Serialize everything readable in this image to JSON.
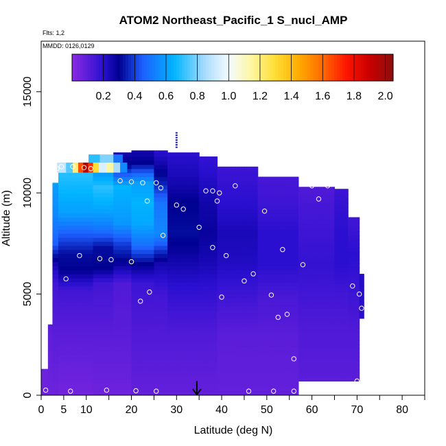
{
  "chart_data": {
    "type": "heatmap",
    "title": "ATOM2 Northeast_Pacific_1 S_nucl_AMP",
    "flights_note": "Flts: 1,2",
    "dates_note": "MMDD: 0126,0129",
    "xlabel": "Latitude (deg N)",
    "ylabel": "Altitude (m)",
    "xlim": [
      0,
      85
    ],
    "ylim": [
      0,
      17500
    ],
    "x_ticks": [
      0,
      5,
      10,
      20,
      30,
      40,
      50,
      60,
      70,
      80
    ],
    "x_tick_labels": [
      "0",
      "5",
      "10",
      "20",
      "30",
      "40",
      "50",
      "60",
      "70",
      "80"
    ],
    "y_ticks": [
      0,
      5000,
      10000,
      15000
    ],
    "y_tick_labels": [
      "0",
      "5000",
      "10000",
      "15000"
    ],
    "colorbar": {
      "range": [
        0.0,
        2.05
      ],
      "ticks": [
        0.2,
        0.4,
        0.6,
        0.8,
        1.0,
        1.2,
        1.4,
        1.6,
        1.8,
        2.0
      ],
      "tick_labels": [
        "0.2",
        "0.4",
        "0.6",
        "0.8",
        "1.0",
        "1.2",
        "1.4",
        "1.6",
        "1.8",
        "2.0"
      ],
      "stops": [
        [
          0.0,
          "#8a2be2"
        ],
        [
          0.2,
          "#2a0fd0"
        ],
        [
          0.3,
          "#000090"
        ],
        [
          0.45,
          "#1e5fff"
        ],
        [
          0.65,
          "#00b4ff"
        ],
        [
          0.85,
          "#aadcff"
        ],
        [
          1.0,
          "#f4fbff"
        ],
        [
          1.15,
          "#fff6a0"
        ],
        [
          1.3,
          "#ffdd33"
        ],
        [
          1.45,
          "#ffaa00"
        ],
        [
          1.6,
          "#ff6a00"
        ],
        [
          1.75,
          "#ff1500"
        ],
        [
          1.9,
          "#c80000"
        ],
        [
          2.05,
          "#8a0f0f"
        ]
      ]
    },
    "column_profiles": [
      {
        "lat_from": 0.0,
        "lat_to": 1.5,
        "alt_from": 0,
        "alt_to": 1300,
        "values": [
          [
            0,
            0.06
          ]
        ]
      },
      {
        "lat_from": 1.5,
        "lat_to": 2.5,
        "alt_from": 0,
        "alt_to": 3500,
        "values": [
          [
            0,
            0.06
          ],
          [
            2000,
            0.08
          ],
          [
            3500,
            0.1
          ]
        ]
      },
      {
        "lat_from": 2.5,
        "lat_to": 3.8,
        "alt_from": 0,
        "alt_to": 10500,
        "values": [
          [
            0,
            0.06
          ],
          [
            3000,
            0.1
          ],
          [
            5500,
            0.15
          ],
          [
            6500,
            0.25
          ],
          [
            7500,
            0.45
          ],
          [
            9000,
            0.55
          ],
          [
            10500,
            0.6
          ]
        ]
      },
      {
        "lat_from": 3.8,
        "lat_to": 11.5,
        "alt_from": 0,
        "alt_to": 11000,
        "values": [
          [
            0,
            0.05
          ],
          [
            3000,
            0.1
          ],
          [
            5200,
            0.15
          ],
          [
            6200,
            0.3
          ],
          [
            7000,
            0.32
          ],
          [
            8000,
            0.45
          ],
          [
            9000,
            0.6
          ],
          [
            10000,
            0.65
          ],
          [
            11000,
            0.7
          ]
        ]
      },
      {
        "lat_from": 11.5,
        "lat_to": 16.0,
        "alt_from": 0,
        "alt_to": 11800,
        "values": [
          [
            0,
            0.06
          ],
          [
            3000,
            0.1
          ],
          [
            5500,
            0.15
          ],
          [
            6300,
            0.3
          ],
          [
            7300,
            0.32
          ],
          [
            8200,
            0.5
          ],
          [
            9200,
            0.62
          ],
          [
            10300,
            0.7
          ],
          [
            11800,
            0.45
          ]
        ]
      },
      {
        "lat_from": 16.0,
        "lat_to": 20.0,
        "alt_from": 0,
        "alt_to": 12000,
        "values": [
          [
            0,
            0.06
          ],
          [
            3000,
            0.1
          ],
          [
            5500,
            0.12
          ],
          [
            6500,
            0.28
          ],
          [
            7500,
            0.4
          ],
          [
            8500,
            0.58
          ],
          [
            9500,
            0.62
          ],
          [
            10300,
            0.65
          ],
          [
            11300,
            0.32
          ],
          [
            12000,
            0.25
          ]
        ]
      },
      {
        "lat_from": 20.0,
        "lat_to": 25.0,
        "alt_from": 0,
        "alt_to": 12100,
        "values": [
          [
            0,
            0.08
          ],
          [
            3000,
            0.12
          ],
          [
            5500,
            0.16
          ],
          [
            6500,
            0.3
          ],
          [
            7500,
            0.5
          ],
          [
            8500,
            0.62
          ],
          [
            9500,
            0.65
          ],
          [
            10500,
            0.6
          ],
          [
            11500,
            0.3
          ],
          [
            12100,
            0.25
          ]
        ]
      },
      {
        "lat_from": 25.0,
        "lat_to": 28.0,
        "alt_from": 0,
        "alt_to": 12100,
        "values": [
          [
            0,
            0.08
          ],
          [
            3000,
            0.12
          ],
          [
            5000,
            0.15
          ],
          [
            6500,
            0.25
          ],
          [
            8000,
            0.55
          ],
          [
            9500,
            0.5
          ],
          [
            10500,
            0.35
          ],
          [
            11500,
            0.25
          ],
          [
            12100,
            0.2
          ]
        ]
      },
      {
        "lat_from": 28.0,
        "lat_to": 35.0,
        "alt_from": 0,
        "alt_to": 12000,
        "values": [
          [
            0,
            0.08
          ],
          [
            3000,
            0.12
          ],
          [
            5000,
            0.18
          ],
          [
            6500,
            0.25
          ],
          [
            8000,
            0.32
          ],
          [
            9500,
            0.3
          ],
          [
            10500,
            0.25
          ],
          [
            12000,
            0.2
          ]
        ]
      },
      {
        "lat_from": 35.0,
        "lat_to": 39.0,
        "alt_from": 0,
        "alt_to": 11800,
        "values": [
          [
            0,
            0.08
          ],
          [
            3000,
            0.12
          ],
          [
            5000,
            0.18
          ],
          [
            6500,
            0.24
          ],
          [
            8000,
            0.28
          ],
          [
            9500,
            0.26
          ],
          [
            10500,
            0.22
          ],
          [
            11800,
            0.18
          ]
        ]
      },
      {
        "lat_from": 39.0,
        "lat_to": 48.0,
        "alt_from": 0,
        "alt_to": 11300,
        "values": [
          [
            0,
            0.08
          ],
          [
            3000,
            0.1
          ],
          [
            5000,
            0.16
          ],
          [
            6500,
            0.22
          ],
          [
            8000,
            0.24
          ],
          [
            9500,
            0.2
          ],
          [
            11300,
            0.16
          ]
        ]
      },
      {
        "lat_from": 48.0,
        "lat_to": 57.0,
        "alt_from": 0,
        "alt_to": 10800,
        "values": [
          [
            0,
            0.08
          ],
          [
            3000,
            0.1
          ],
          [
            5000,
            0.14
          ],
          [
            6500,
            0.2
          ],
          [
            8000,
            0.2
          ],
          [
            9500,
            0.16
          ],
          [
            10800,
            0.14
          ]
        ]
      },
      {
        "lat_from": 57.0,
        "lat_to": 65.0,
        "alt_from": 700,
        "alt_to": 10300,
        "values": [
          [
            700,
            0.1
          ],
          [
            3000,
            0.12
          ],
          [
            5000,
            0.15
          ],
          [
            6500,
            0.18
          ],
          [
            8000,
            0.16
          ],
          [
            9500,
            0.14
          ],
          [
            10300,
            0.12
          ]
        ]
      },
      {
        "lat_from": 65.0,
        "lat_to": 68.0,
        "alt_from": 700,
        "alt_to": 10200,
        "values": [
          [
            700,
            0.1
          ],
          [
            3000,
            0.12
          ],
          [
            5000,
            0.15
          ],
          [
            6500,
            0.2
          ],
          [
            8000,
            0.2
          ],
          [
            9500,
            0.18
          ],
          [
            10200,
            0.16
          ]
        ]
      },
      {
        "lat_from": 68.0,
        "lat_to": 70.5,
        "alt_from": 700,
        "alt_to": 8800,
        "values": [
          [
            700,
            0.1
          ],
          [
            3000,
            0.12
          ],
          [
            5000,
            0.16
          ],
          [
            7000,
            0.2
          ],
          [
            8800,
            0.15
          ]
        ]
      },
      {
        "lat_from": 70.5,
        "lat_to": 71.5,
        "alt_from": 3800,
        "alt_to": 6000,
        "values": [
          [
            3800,
            0.2
          ],
          [
            6000,
            0.22
          ]
        ]
      }
    ],
    "hotspot": {
      "alt_from": 11000,
      "alt_to": 11500,
      "cells": [
        [
          3.5,
          5.5,
          0.9
        ],
        [
          5.5,
          7.0,
          0.75
        ],
        [
          7.0,
          8.2,
          1.2
        ],
        [
          8.2,
          9.3,
          1.65
        ],
        [
          9.3,
          10.4,
          1.95
        ],
        [
          10.4,
          11.5,
          1.7
        ],
        [
          11.5,
          12.8,
          1.3
        ],
        [
          12.8,
          14.5,
          0.95
        ],
        [
          14.5,
          16.0,
          1.15
        ],
        [
          16.0,
          17.5,
          0.85
        ],
        [
          17.5,
          19.0,
          0.55
        ]
      ]
    },
    "highlight_band": {
      "alt_from": 11500,
      "alt_to": 11900,
      "cells": [
        [
          10.5,
          13.0,
          0.7
        ],
        [
          13.0,
          16.0,
          0.8
        ],
        [
          16.0,
          18.0,
          0.5
        ]
      ]
    },
    "flight_markers": {
      "tower_lat": 30,
      "tower_alt_from": 12200,
      "tower_alt_to": 13000,
      "arrow_lat": 34.5,
      "arrow_alt_from": 700,
      "arrow_alt_to": 0
    },
    "sample_points": [
      [
        1,
        250
      ],
      [
        6.5,
        200
      ],
      [
        14.5,
        250
      ],
      [
        21,
        220
      ],
      [
        25.5,
        200
      ],
      [
        46,
        200
      ],
      [
        51.5,
        200
      ],
      [
        56,
        200
      ],
      [
        70,
        700
      ],
      [
        56,
        1800
      ],
      [
        52.5,
        3850
      ],
      [
        54.5,
        4000
      ],
      [
        71,
        4300
      ],
      [
        22,
        4650
      ],
      [
        24,
        5100
      ],
      [
        40,
        4850
      ],
      [
        51,
        4950
      ],
      [
        70.5,
        5000
      ],
      [
        69,
        5400
      ],
      [
        45,
        5650
      ],
      [
        47,
        6000
      ],
      [
        1.5,
        6400
      ],
      [
        1.8,
        6550
      ],
      [
        5.5,
        5750
      ],
      [
        8.5,
        6900
      ],
      [
        13,
        6750
      ],
      [
        15.5,
        6700
      ],
      [
        20,
        6600
      ],
      [
        58,
        6450
      ],
      [
        41,
        6900
      ],
      [
        38,
        7300
      ],
      [
        53.5,
        7200
      ],
      [
        27,
        7900
      ],
      [
        35,
        8300
      ],
      [
        30,
        9400
      ],
      [
        31.5,
        9200
      ],
      [
        23.5,
        9600
      ],
      [
        39,
        9600
      ],
      [
        49.5,
        9100
      ],
      [
        36.5,
        10100
      ],
      [
        38,
        10100
      ],
      [
        39.5,
        10000
      ],
      [
        43,
        10350
      ],
      [
        61.5,
        9700
      ],
      [
        60,
        10350
      ],
      [
        63.5,
        10350
      ],
      [
        26.5,
        10250
      ],
      [
        25.5,
        10500
      ],
      [
        17.5,
        10600
      ],
      [
        20,
        10550
      ],
      [
        22.5,
        10500
      ],
      [
        3.5,
        11200
      ],
      [
        4.5,
        11300
      ],
      [
        7,
        11300
      ],
      [
        9.5,
        11250
      ],
      [
        11,
        11200
      ],
      [
        10.8,
        12050
      ],
      [
        17.5,
        12350
      ],
      [
        66,
        10900
      ]
    ]
  }
}
